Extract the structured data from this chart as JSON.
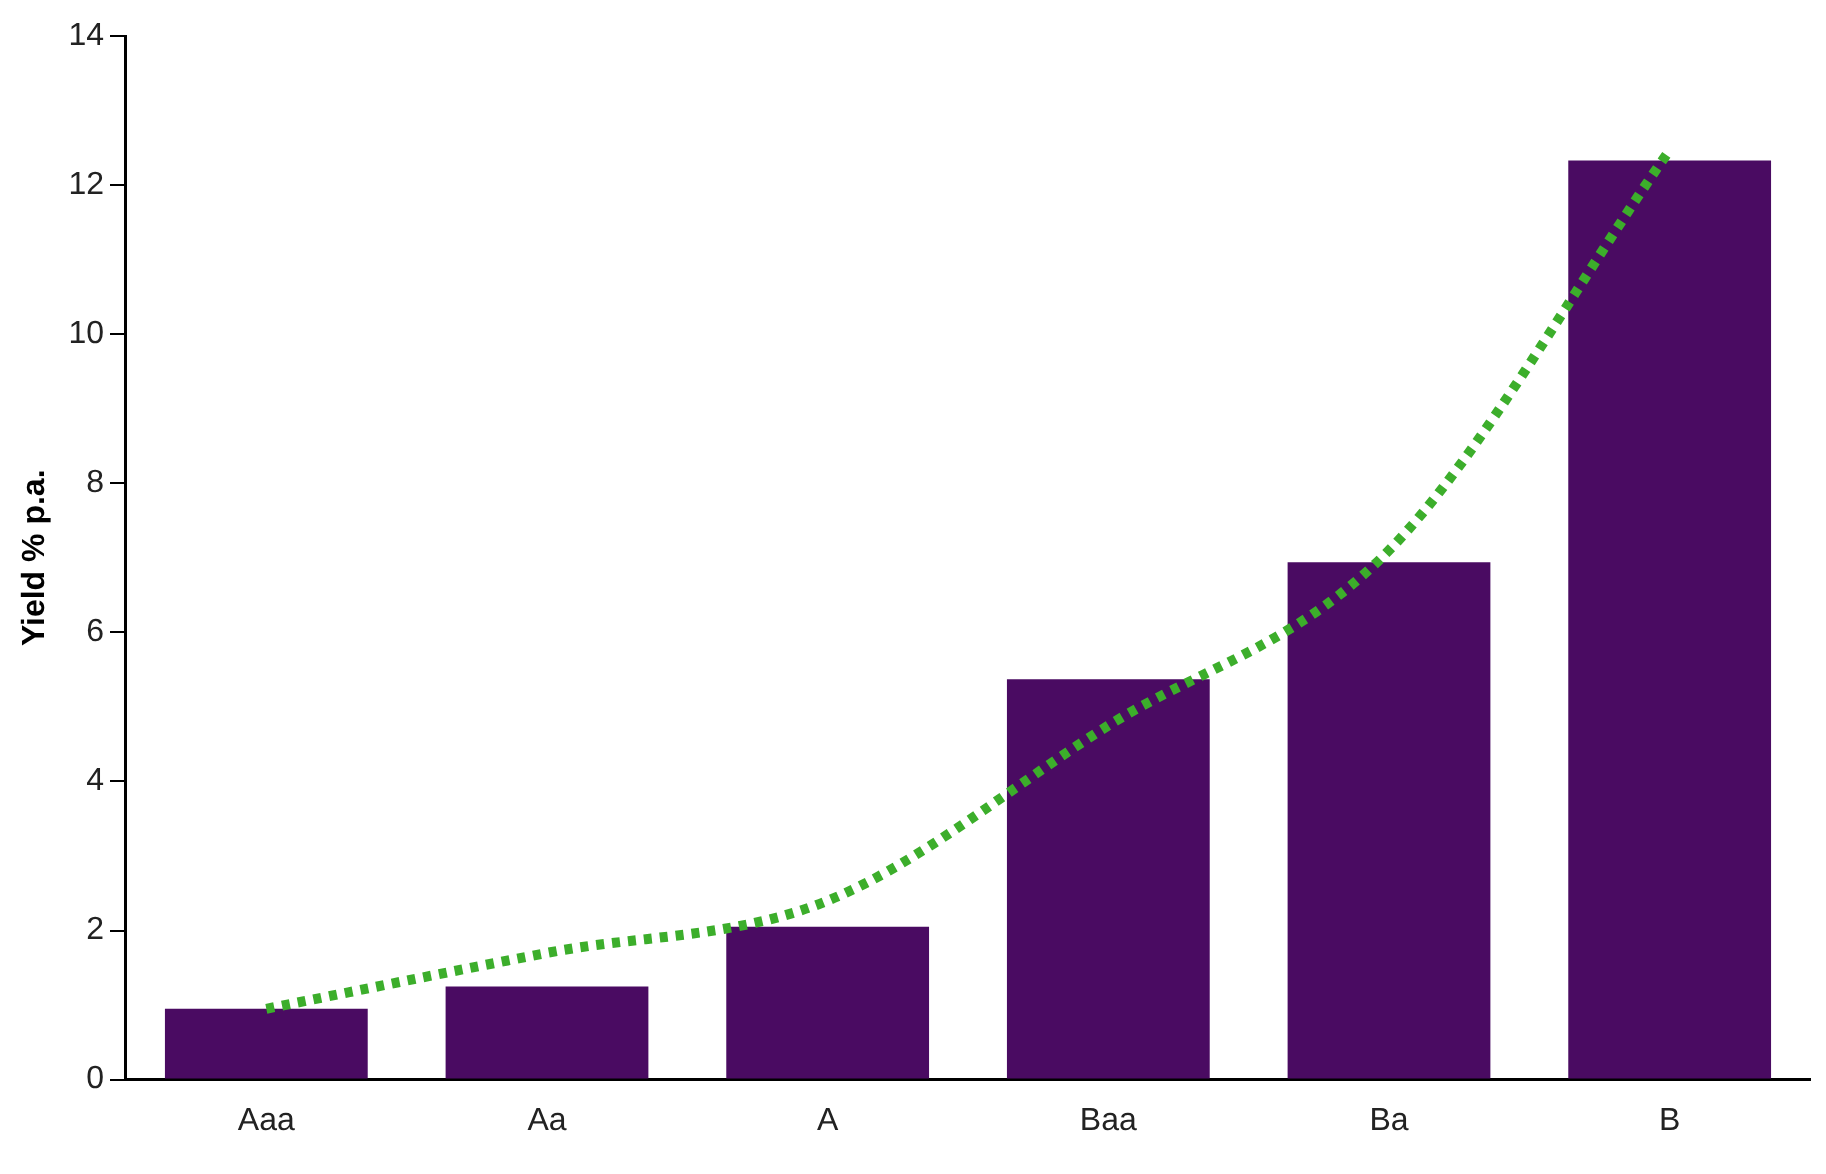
{
  "chart_data": {
    "type": "bar",
    "ylabel": "Yield % p.a.",
    "categories": [
      "Aaa",
      "Aa",
      "A",
      "Baa",
      "Ba",
      "B"
    ],
    "series": [
      {
        "color": "#4a0b62",
        "values": [
          0.95,
          1.25,
          2.05,
          5.37,
          6.94,
          12.33
        ]
      },
      {
        "type": "line",
        "color": "#3cae2b",
        "x": [
          "Aaa",
          "Aa",
          "A",
          "Baa",
          "Ba",
          "B"
        ],
        "values": [
          0.95,
          1.7,
          2.4,
          4.75,
          7.1,
          12.47
        ],
        "line_style": "dotted",
        "marker": "none"
      }
    ],
    "ylim": [
      0,
      14
    ],
    "yticks": [
      0,
      2,
      4,
      6,
      8,
      10,
      12,
      14
    ],
    "grid": false,
    "legend": false
  }
}
